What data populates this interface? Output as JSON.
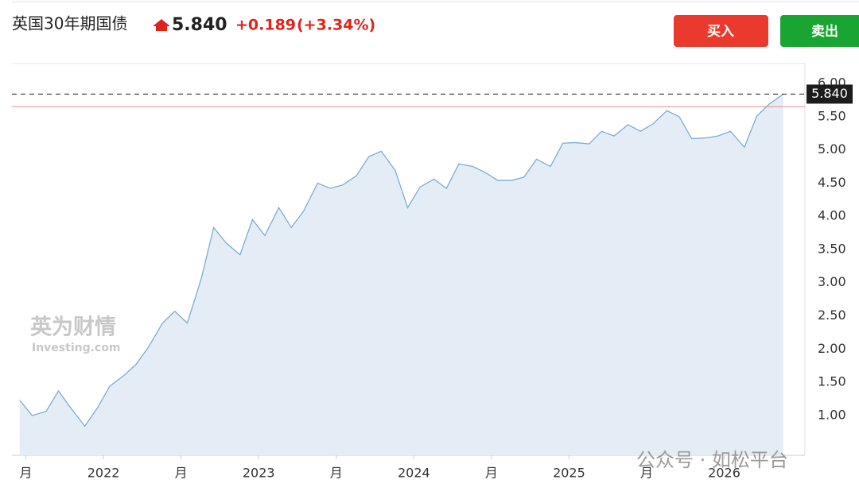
{
  "header": {
    "title": "英国30年期国债",
    "price": "5.840",
    "change": "+0.189",
    "change_pct": "(+3.34%)"
  },
  "buttons": {
    "buy": "买入",
    "sell": "卖出"
  },
  "watermarks": {
    "brand": "英为财情",
    "brand_sub": "Investing.com",
    "account": "公众号 · 如松平台"
  },
  "chart_data": {
    "type": "area",
    "x": [
      2021.46,
      2021.54,
      2021.63,
      2021.71,
      2021.79,
      2021.88,
      2021.96,
      2022.04,
      2022.13,
      2022.21,
      2022.29,
      2022.38,
      2022.46,
      2022.54,
      2022.63,
      2022.71,
      2022.79,
      2022.88,
      2022.96,
      2023.04,
      2023.13,
      2023.21,
      2023.29,
      2023.38,
      2023.46,
      2023.54,
      2023.63,
      2023.71,
      2023.79,
      2023.88,
      2023.96,
      2024.04,
      2024.13,
      2024.21,
      2024.29,
      2024.38,
      2024.46,
      2024.54,
      2024.63,
      2024.71,
      2024.79,
      2024.88,
      2024.96,
      2025.04,
      2025.13,
      2025.21,
      2025.29,
      2025.38,
      2025.46,
      2025.54,
      2025.63,
      2025.71,
      2025.79,
      2025.88,
      2025.96,
      2026.04,
      2026.13,
      2026.21,
      2026.29,
      2026.38
    ],
    "values": [
      1.23,
      1.0,
      1.06,
      1.37,
      1.11,
      0.84,
      1.11,
      1.44,
      1.6,
      1.77,
      2.03,
      2.39,
      2.57,
      2.39,
      3.06,
      3.83,
      3.6,
      3.42,
      3.95,
      3.71,
      4.13,
      3.83,
      4.08,
      4.5,
      4.42,
      4.47,
      4.61,
      4.9,
      4.98,
      4.69,
      4.13,
      4.44,
      4.56,
      4.42,
      4.79,
      4.75,
      4.66,
      4.54,
      4.54,
      4.59,
      4.86,
      4.75,
      5.1,
      5.11,
      5.09,
      5.28,
      5.21,
      5.38,
      5.28,
      5.39,
      5.59,
      5.5,
      5.17,
      5.18,
      5.21,
      5.28,
      5.04,
      5.51,
      5.69,
      5.84
    ],
    "color": "#7aaed3",
    "fill": "#e4edf5",
    "last_value": 5.84,
    "last_label": "5.840",
    "reference_line": 5.651,
    "xlim": [
      2021.41,
      2026.52
    ],
    "xticks": [
      {
        "value": 2021.5,
        "label": "月"
      },
      2022,
      {
        "value": 2022.5,
        "label": "月"
      },
      2023,
      {
        "value": 2023.5,
        "label": "月"
      },
      2024,
      {
        "value": 2024.5,
        "label": "月"
      },
      2025,
      {
        "value": 2025.5,
        "label": "月"
      },
      2026
    ],
    "ylim": [
      0.4,
      6.3
    ],
    "yticks": [
      {
        "value": 1,
        "label": "1.00"
      },
      {
        "value": 1.5,
        "label": "1.50"
      },
      {
        "value": 2,
        "label": "2.00"
      },
      {
        "value": 2.5,
        "label": "2.50"
      },
      {
        "value": 3,
        "label": "3.00"
      },
      {
        "value": 3.5,
        "label": "3.50"
      },
      {
        "value": 4,
        "label": "4.00"
      },
      {
        "value": 4.5,
        "label": "4.50"
      },
      {
        "value": 5,
        "label": "5.00"
      },
      {
        "value": 5.5,
        "label": "5.50"
      },
      {
        "value": 6,
        "label": "6.00"
      }
    ]
  }
}
